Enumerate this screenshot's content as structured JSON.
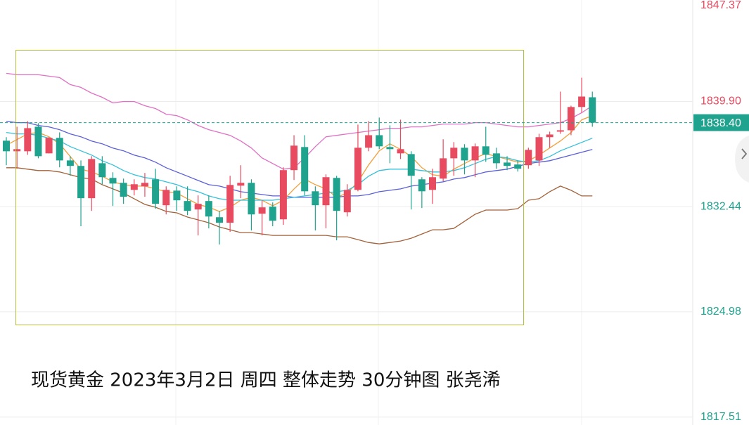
{
  "chart_data": {
    "type": "candlestick",
    "title": "现货黄金 2023年3月2日 周四 整体走势 30分钟图  张尧浠",
    "ylim": [
      1817.0,
      1847.4
    ],
    "yticks": [
      1847.37,
      {
        "value": 1839.9,
        "label": "1839.90"
      },
      1832.44,
      1824.98,
      1817.51
    ],
    "grid": true,
    "up_color": "#e84a5f",
    "down_color": "#1fa38e",
    "last_price": {
      "value": 1838.4,
      "label": "1838.40"
    },
    "open": [
      1837.12,
      1836.37,
      1836.37,
      1838.11,
      1836.22,
      1837.32,
      1835.72,
      1835.33,
      1833.04,
      1835.52,
      1834.48,
      1834.13,
      1833.63,
      1833.88,
      1834.38,
      1832.54,
      1833.58,
      1832.84,
      1832.24,
      1832.84,
      1831.69,
      1831.3,
      1833.93,
      1834.13,
      1831.94,
      1832.44,
      1831.54,
      1835.03,
      1836.67,
      1833.53,
      1832.54,
      1834.48,
      1832.04,
      1833.63,
      1836.62,
      1837.51,
      1836.67,
      1836.22,
      1836.17,
      1834.38,
      1833.63,
      1834.43,
      1835.87,
      1836.62,
      1835.72,
      1836.72,
      1836.22,
      1835.57,
      1835.43,
      1835.38,
      1835.72,
      1837.37,
      1837.76,
      1837.86,
      1839.51,
      1840.2
    ],
    "high": [
      1837.37,
      1838.11,
      1838.51,
      1838.36,
      1837.37,
      1837.71,
      1836.02,
      1835.72,
      1836.02,
      1836.02,
      1834.88,
      1834.43,
      1834.38,
      1834.83,
      1835.13,
      1833.88,
      1833.88,
      1833.88,
      1833.24,
      1833.24,
      1832.14,
      1834.63,
      1835.38,
      1834.38,
      1832.89,
      1832.74,
      1835.23,
      1837.51,
      1837.51,
      1833.88,
      1834.73,
      1834.63,
      1834.03,
      1838.26,
      1838.51,
      1838.76,
      1838.21,
      1838.61,
      1836.37,
      1834.53,
      1835.13,
      1837.22,
      1837.02,
      1836.87,
      1836.92,
      1838.11,
      1836.62,
      1836.02,
      1835.72,
      1836.62,
      1837.61,
      1837.76,
      1840.6,
      1839.6,
      1841.59,
      1840.6
    ],
    "low": [
      1835.38,
      1835.13,
      1836.12,
      1835.87,
      1836.22,
      1835.23,
      1834.63,
      1831.05,
      1832.14,
      1834.03,
      1832.49,
      1832.64,
      1833.24,
      1833.14,
      1832.29,
      1831.89,
      1832.14,
      1831.84,
      1830.4,
      1830.9,
      1829.75,
      1830.65,
      1833.04,
      1830.75,
      1830.4,
      1831.05,
      1831.15,
      1834.33,
      1833.24,
      1830.75,
      1830.9,
      1830.05,
      1831.74,
      1833.53,
      1836.37,
      1836.52,
      1835.52,
      1835.82,
      1832.24,
      1832.34,
      1832.64,
      1834.23,
      1834.63,
      1834.73,
      1834.53,
      1835.62,
      1835.13,
      1835.03,
      1834.93,
      1835.13,
      1835.33,
      1836.62,
      1837.61,
      1837.51,
      1839.11,
      1838.11
    ],
    "close": [
      1836.37,
      1836.52,
      1838.01,
      1836.02,
      1837.32,
      1835.72,
      1835.33,
      1833.04,
      1835.82,
      1834.53,
      1834.08,
      1833.14,
      1834.03,
      1834.13,
      1832.64,
      1833.63,
      1832.89,
      1832.14,
      1832.64,
      1831.74,
      1831.3,
      1833.98,
      1834.13,
      1831.89,
      1832.39,
      1831.44,
      1835.03,
      1836.77,
      1833.53,
      1832.54,
      1834.53,
      1832.14,
      1833.63,
      1836.62,
      1837.51,
      1836.72,
      1836.52,
      1836.52,
      1834.63,
      1833.53,
      1834.53,
      1835.87,
      1836.62,
      1835.72,
      1836.72,
      1836.12,
      1835.52,
      1835.33,
      1835.13,
      1836.47,
      1837.37,
      1837.56,
      1837.86,
      1839.51,
      1840.25,
      1838.4
    ],
    "lines": [
      {
        "color": "#e070c4",
        "values": [
          1841.9,
          1841.8,
          1841.8,
          1841.8,
          1841.7,
          1841.6,
          1841.1,
          1840.9,
          1840.5,
          1840.2,
          1839.8,
          1839.9,
          1839.9,
          1839.6,
          1839.4,
          1839.0,
          1838.9,
          1838.6,
          1838.2,
          1837.9,
          1837.7,
          1837.5,
          1837.1,
          1836.6,
          1835.9,
          1835.5,
          1835.1,
          1835.2,
          1835.9,
          1836.7,
          1837.4,
          1837.5,
          1837.6,
          1837.7,
          1837.8,
          1837.9,
          1838.0,
          1838.0,
          1838.1,
          1838.1,
          1838.2,
          1838.3,
          1838.3,
          1838.3,
          1838.4,
          1838.4,
          1838.3,
          1838.2,
          1838.1,
          1838.1,
          1838.2,
          1838.3,
          1838.4,
          1838.7,
          1839.1,
          1839.6
        ]
      },
      {
        "color": "#5a5fd8",
        "values": [
          1838.5,
          1838.4,
          1838.4,
          1838.2,
          1838.1,
          1837.9,
          1837.6,
          1837.4,
          1837.1,
          1836.9,
          1836.6,
          1836.4,
          1836.1,
          1835.9,
          1835.6,
          1835.2,
          1834.9,
          1834.6,
          1834.3,
          1834.0,
          1833.9,
          1833.7,
          1833.5,
          1833.4,
          1833.3,
          1833.2,
          1833.2,
          1833.1,
          1833.1,
          1833.1,
          1833.1,
          1833.1,
          1833.2,
          1833.2,
          1833.3,
          1833.5,
          1833.6,
          1833.7,
          1833.9,
          1834.0,
          1834.1,
          1834.2,
          1834.4,
          1834.5,
          1834.7,
          1834.9,
          1835.0,
          1835.1,
          1835.3,
          1835.5,
          1835.6,
          1835.7,
          1835.9,
          1836.1,
          1836.3,
          1836.5
        ]
      },
      {
        "color": "#a3623a",
        "values": [
          1835.2,
          1835.2,
          1835.1,
          1835.0,
          1835.0,
          1834.9,
          1834.7,
          1834.5,
          1834.4,
          1834.0,
          1833.7,
          1833.4,
          1833.0,
          1832.6,
          1832.4,
          1832.1,
          1832.0,
          1831.7,
          1831.5,
          1831.3,
          1831.0,
          1830.8,
          1830.6,
          1830.6,
          1830.5,
          1830.4,
          1830.4,
          1830.4,
          1830.4,
          1830.4,
          1830.4,
          1830.3,
          1830.3,
          1830.1,
          1829.9,
          1829.8,
          1829.9,
          1830.0,
          1830.2,
          1830.5,
          1830.8,
          1830.8,
          1830.9,
          1831.4,
          1831.9,
          1832.2,
          1832.2,
          1832.2,
          1832.3,
          1832.9,
          1833.0,
          1833.5,
          1833.9,
          1833.6,
          1833.2,
          1833.2
        ]
      },
      {
        "color": "#f2a03a",
        "values": [
          1836.8,
          1837.2,
          1837.6,
          1837.7,
          1837.4,
          1836.9,
          1836.0,
          1835.1,
          1834.9,
          1834.6,
          1834.2,
          1834.0,
          1833.9,
          1833.9,
          1833.7,
          1833.5,
          1833.4,
          1833.0,
          1832.6,
          1832.4,
          1832.1,
          1832.4,
          1832.9,
          1833.1,
          1832.9,
          1832.5,
          1832.9,
          1833.7,
          1834.4,
          1834.0,
          1833.7,
          1833.1,
          1833.4,
          1834.2,
          1835.4,
          1836.4,
          1836.9,
          1836.5,
          1836.0,
          1835.2,
          1834.7,
          1834.6,
          1835.1,
          1835.5,
          1835.9,
          1836.2,
          1836.0,
          1835.8,
          1835.6,
          1835.7,
          1836.1,
          1836.6,
          1837.1,
          1837.7,
          1838.6,
          1838.9
        ]
      },
      {
        "color": "#34c0da",
        "values": [
          1837.7,
          1837.6,
          1837.6,
          1837.5,
          1837.3,
          1837.1,
          1836.7,
          1836.4,
          1836.1,
          1835.7,
          1835.4,
          1835.0,
          1834.7,
          1834.5,
          1834.4,
          1834.2,
          1834.0,
          1833.7,
          1833.5,
          1833.2,
          1833.0,
          1832.9,
          1832.9,
          1832.9,
          1832.9,
          1832.9,
          1833.0,
          1833.1,
          1833.2,
          1833.3,
          1833.4,
          1833.5,
          1833.6,
          1834.0,
          1834.6,
          1835.0,
          1835.1,
          1835.1,
          1835.1,
          1835.0,
          1834.9,
          1834.9,
          1835.0,
          1835.2,
          1835.5,
          1835.8,
          1836.0,
          1835.9,
          1835.7,
          1835.6,
          1835.7,
          1836.0,
          1836.4,
          1836.7,
          1837.0,
          1837.3
        ]
      }
    ]
  }
}
